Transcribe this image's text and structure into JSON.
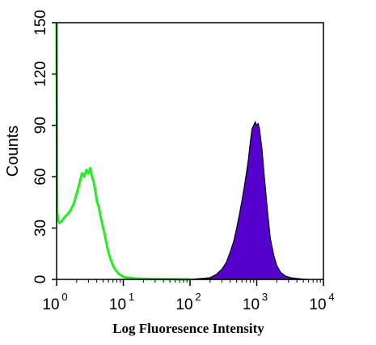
{
  "chart_data": {
    "type": "area",
    "title": "",
    "xlabel": "Log Fluoresence Intensity",
    "ylabel": "Counts",
    "x_scale": "log",
    "xlim": [
      1,
      10000
    ],
    "ylim": [
      0,
      150
    ],
    "x_ticks": [
      {
        "base": "10",
        "exp": "0"
      },
      {
        "base": "10",
        "exp": "1"
      },
      {
        "base": "10",
        "exp": "2"
      },
      {
        "base": "10",
        "exp": "3"
      },
      {
        "base": "10",
        "exp": "4"
      }
    ],
    "y_ticks": [
      "0",
      "30",
      "60",
      "90",
      "120",
      "150"
    ],
    "y_tick_values": [
      0,
      30,
      60,
      90,
      120,
      150
    ],
    "grid": false,
    "series": [
      {
        "style": "outline",
        "color": "#22ee22",
        "x": [
          1.0,
          1.02,
          1.05,
          1.1,
          1.2,
          1.3,
          1.45,
          1.6,
          1.8,
          2.0,
          2.2,
          2.4,
          2.6,
          2.8,
          3.0,
          3.2,
          3.4,
          3.6,
          3.8,
          4.0,
          4.3,
          4.6,
          5.0,
          5.4,
          5.8,
          6.3,
          7.0,
          7.8,
          8.7,
          10,
          11.5,
          13,
          15,
          18,
          22,
          28,
          35,
          45,
          60,
          80,
          100
        ],
        "y": [
          150,
          40,
          35,
          33,
          34,
          36,
          38,
          40,
          44,
          50,
          56,
          62,
          60,
          64,
          62,
          65,
          60,
          57,
          52,
          46,
          42,
          36,
          30,
          24,
          18,
          13,
          8,
          5,
          3,
          1.5,
          1,
          0.8,
          0.5,
          0.4,
          0.3,
          0.2,
          0.2,
          0.1,
          0.1,
          0,
          0
        ]
      },
      {
        "style": "filled",
        "color": "#5500cc",
        "x": [
          100,
          150,
          200,
          250,
          300,
          350,
          400,
          450,
          500,
          550,
          600,
          650,
          700,
          750,
          800,
          850,
          900,
          950,
          1000,
          1050,
          1100,
          1200,
          1300,
          1450,
          1600,
          1800,
          2000,
          2300,
          2700,
          3200,
          4000,
          5000,
          6000
        ],
        "y": [
          0,
          0.5,
          1,
          3,
          6,
          10,
          16,
          22,
          30,
          38,
          46,
          54,
          62,
          70,
          80,
          88,
          90,
          92,
          90,
          91,
          88,
          76,
          60,
          40,
          24,
          14,
          8,
          4,
          2,
          1,
          0.5,
          0.2,
          0
        ]
      }
    ]
  }
}
